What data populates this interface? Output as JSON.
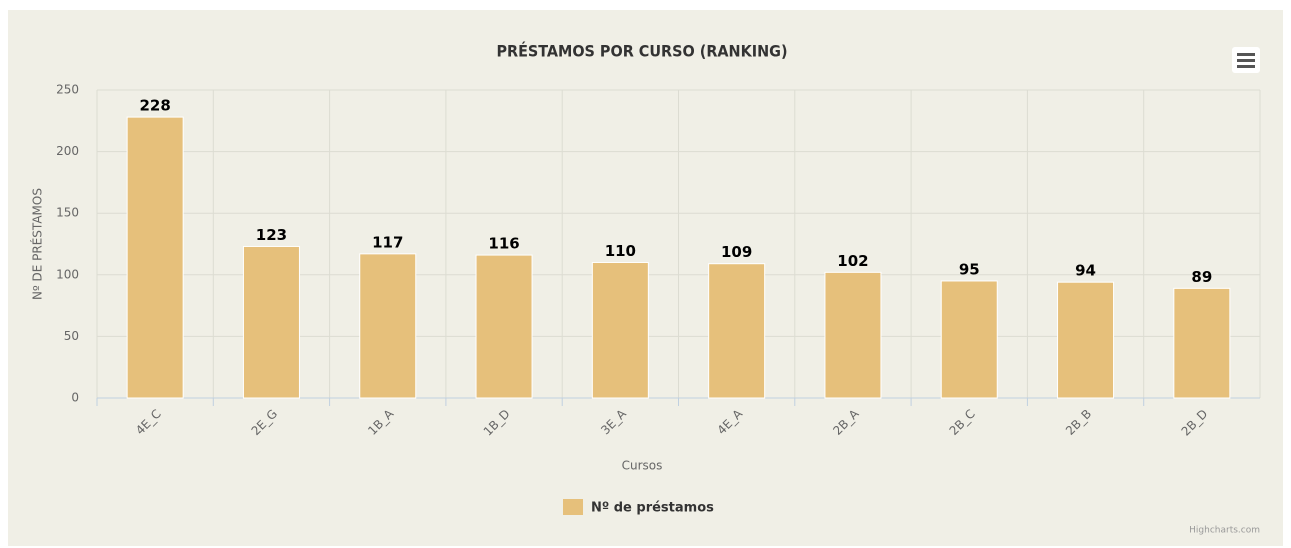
{
  "chart_data": {
    "type": "bar",
    "title": "PRÉSTAMOS POR CURSO (RANKING)",
    "x_axis_label": "Cursos",
    "y_axis_label": "Nº DE PRÉSTAMOS",
    "categories": [
      "4E_C",
      "2E_G",
      "1B_A",
      "1B_D",
      "3E_A",
      "4E_A",
      "2B_A",
      "2B_C",
      "2B_B",
      "2B_D"
    ],
    "series": [
      {
        "name": "Nº de préstamos",
        "color": "#e6c07b",
        "values": [
          228,
          123,
          117,
          116,
          110,
          109,
          102,
          95,
          94,
          89
        ]
      }
    ],
    "ylim": [
      0,
      250
    ],
    "yticks": [
      0,
      50,
      100,
      150,
      200,
      250
    ],
    "grid": true,
    "legend": "bottom",
    "credits": "Highcharts.com"
  }
}
